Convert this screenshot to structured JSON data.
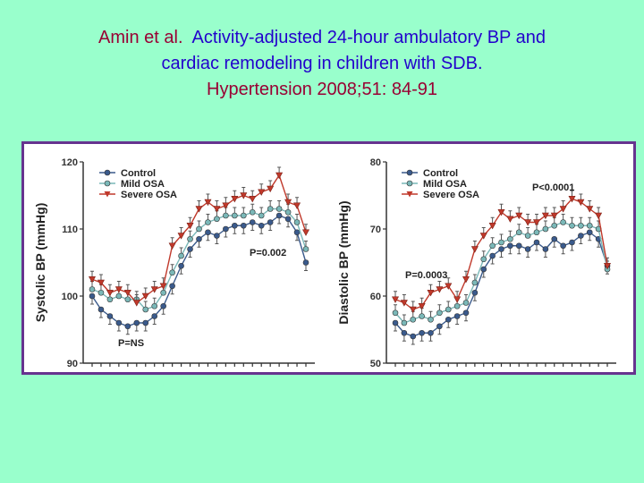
{
  "title": {
    "author": "Amin et al.",
    "line1_rest": "Activity-adjusted 24-hour ambulatory BP and",
    "line2": "cardiac remodeling in children with SDB.",
    "journal": "Hypertension 2008;51: 84-91"
  },
  "colors": {
    "background": "#99ffcc",
    "title_text": "#2200cc",
    "title_accent": "#990033",
    "frame_border": "#66338f",
    "control": "#3a5a8c",
    "mild_osa": "#7ab8b8",
    "severe_osa": "#c0392b"
  },
  "chart_data": [
    {
      "type": "line",
      "ylabel": "Systolic BP (mmHg)",
      "ylim": [
        90,
        120
      ],
      "yticks": [
        90,
        100,
        110,
        120
      ],
      "x": [
        1,
        2,
        3,
        4,
        5,
        6,
        7,
        8,
        9,
        10,
        11,
        12,
        13,
        14,
        15,
        16,
        17,
        18,
        19,
        20,
        21,
        22,
        23,
        24,
        25
      ],
      "legend": "top-left",
      "series": [
        {
          "name": "Control",
          "marker": "circle",
          "color": "#3a5a8c",
          "values": [
            100.0,
            98.0,
            97.0,
            96.0,
            95.5,
            96.0,
            96.0,
            97.0,
            98.5,
            101.5,
            104.5,
            107.0,
            108.5,
            109.5,
            109.0,
            110.0,
            110.5,
            110.5,
            111.0,
            110.5,
            111.0,
            112.0,
            111.5,
            109.5,
            105.0
          ]
        },
        {
          "name": "Mild OSA",
          "marker": "circle",
          "color": "#7ab8b8",
          "values": [
            101.0,
            100.5,
            99.5,
            100.0,
            99.5,
            99.5,
            98.0,
            98.5,
            100.5,
            103.5,
            106.0,
            108.5,
            110.0,
            111.0,
            111.5,
            112.0,
            112.0,
            112.0,
            112.5,
            112.0,
            113.0,
            113.0,
            112.5,
            111.0,
            107.0
          ]
        },
        {
          "name": "Severe OSA",
          "marker": "triangle-down",
          "color": "#c0392b",
          "values": [
            102.5,
            102.0,
            100.5,
            101.0,
            100.5,
            99.0,
            100.0,
            101.0,
            101.5,
            107.5,
            109.0,
            110.5,
            113.0,
            114.0,
            113.0,
            113.5,
            114.5,
            115.0,
            114.5,
            115.5,
            116.0,
            118.0,
            114.0,
            113.5,
            109.5
          ]
        }
      ],
      "annotations": [
        "P=0.002",
        "P=NS"
      ]
    },
    {
      "type": "line",
      "ylabel": "Diastolic BP (mmHg)",
      "ylim": [
        50,
        80
      ],
      "yticks": [
        50,
        60,
        70,
        80
      ],
      "x": [
        1,
        2,
        3,
        4,
        5,
        6,
        7,
        8,
        9,
        10,
        11,
        12,
        13,
        14,
        15,
        16,
        17,
        18,
        19,
        20,
        21,
        22,
        23,
        24,
        25
      ],
      "legend": "top-left",
      "series": [
        {
          "name": "Control",
          "marker": "circle",
          "color": "#3a5a8c",
          "values": [
            56.0,
            54.5,
            54.0,
            54.5,
            54.5,
            55.5,
            56.5,
            57.0,
            57.5,
            60.5,
            64.0,
            66.0,
            67.0,
            67.5,
            67.5,
            67.0,
            68.0,
            67.0,
            68.5,
            67.5,
            68.0,
            69.0,
            69.5,
            68.5,
            64.5
          ]
        },
        {
          "name": "Mild OSA",
          "marker": "circle",
          "color": "#7ab8b8",
          "values": [
            57.5,
            56.0,
            56.5,
            57.0,
            56.5,
            57.5,
            58.0,
            58.5,
            59.0,
            62.0,
            65.5,
            67.5,
            68.0,
            68.5,
            69.5,
            69.0,
            69.5,
            70.0,
            70.5,
            71.0,
            70.5,
            70.5,
            70.5,
            70.0,
            64.0
          ]
        },
        {
          "name": "Severe OSA",
          "marker": "triangle-down",
          "color": "#c0392b",
          "values": [
            59.5,
            59.0,
            58.0,
            58.5,
            60.5,
            61.0,
            61.5,
            59.5,
            62.5,
            67.0,
            69.0,
            70.5,
            72.5,
            71.5,
            72.0,
            71.0,
            71.0,
            72.0,
            72.0,
            73.0,
            74.5,
            74.0,
            73.0,
            72.0,
            64.5
          ]
        }
      ],
      "annotations": [
        "P<0.0001",
        "P=0.0003"
      ]
    }
  ]
}
